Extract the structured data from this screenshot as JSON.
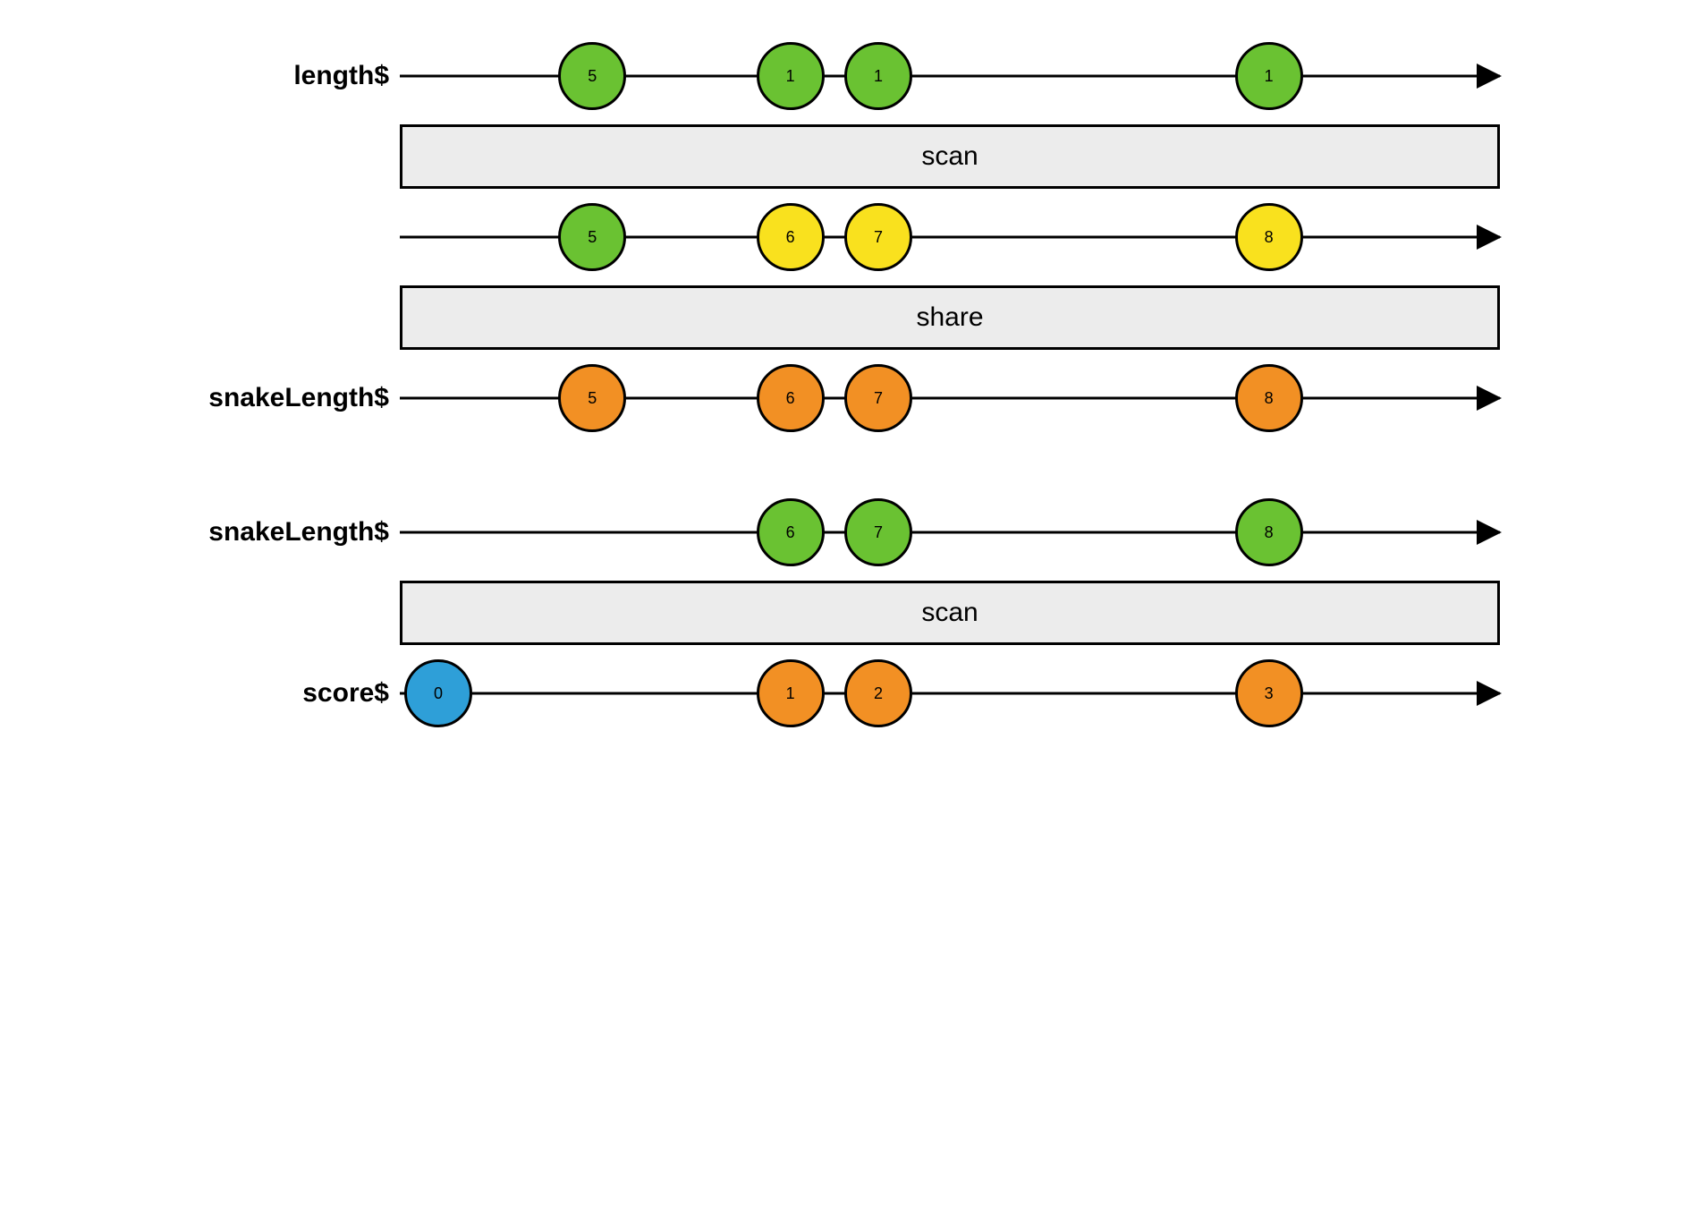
{
  "colors": {
    "green": "#6ac232",
    "yellow": "#f9e11e",
    "orange": "#f29024",
    "blue": "#2e9fd8",
    "box_bg": "#ececec",
    "stroke": "#000000"
  },
  "layout": {
    "timeline_width": 1230,
    "marble_diameter": 76,
    "label_fontsize": 30,
    "operator_fontsize": 30,
    "marble_fontsize": 18
  },
  "rows": [
    {
      "type": "timeline",
      "label": "length$",
      "marbles": [
        {
          "x": 0.175,
          "value": "5",
          "color": "green"
        },
        {
          "x": 0.355,
          "value": "1",
          "color": "green"
        },
        {
          "x": 0.435,
          "value": "1",
          "color": "green"
        },
        {
          "x": 0.79,
          "value": "1",
          "color": "green"
        }
      ]
    },
    {
      "type": "operator",
      "label": "scan"
    },
    {
      "type": "timeline",
      "label": "",
      "marbles": [
        {
          "x": 0.175,
          "value": "5",
          "color": "green"
        },
        {
          "x": 0.355,
          "value": "6",
          "color": "yellow"
        },
        {
          "x": 0.435,
          "value": "7",
          "color": "yellow"
        },
        {
          "x": 0.79,
          "value": "8",
          "color": "yellow"
        }
      ]
    },
    {
      "type": "operator",
      "label": "share"
    },
    {
      "type": "timeline",
      "label": "snakeLength$",
      "marbles": [
        {
          "x": 0.175,
          "value": "5",
          "color": "orange"
        },
        {
          "x": 0.355,
          "value": "6",
          "color": "orange"
        },
        {
          "x": 0.435,
          "value": "7",
          "color": "orange"
        },
        {
          "x": 0.79,
          "value": "8",
          "color": "orange"
        }
      ]
    },
    {
      "type": "gap"
    },
    {
      "type": "timeline",
      "label": "snakeLength$",
      "marbles": [
        {
          "x": 0.355,
          "value": "6",
          "color": "green"
        },
        {
          "x": 0.435,
          "value": "7",
          "color": "green"
        },
        {
          "x": 0.79,
          "value": "8",
          "color": "green"
        }
      ]
    },
    {
      "type": "operator",
      "label": "scan"
    },
    {
      "type": "timeline",
      "label": "score$",
      "marbles": [
        {
          "x": 0.035,
          "value": "0",
          "color": "blue"
        },
        {
          "x": 0.355,
          "value": "1",
          "color": "orange"
        },
        {
          "x": 0.435,
          "value": "2",
          "color": "orange"
        },
        {
          "x": 0.79,
          "value": "3",
          "color": "orange"
        }
      ]
    }
  ]
}
